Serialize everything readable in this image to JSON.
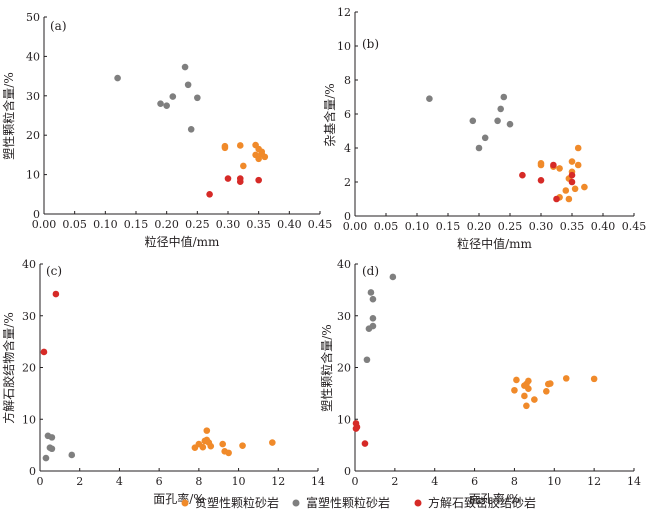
{
  "colors": {
    "poor": "#f08a2a",
    "rich": "#7f7f7f",
    "calcite": "#d62a27",
    "axis": "#231f20"
  },
  "legend": {
    "poor": "贫塑性颗粒砂岩",
    "rich": "富塑性颗粒砂岩",
    "calcite": "方解石致密胶结砂岩"
  },
  "chart_data": [
    {
      "type": "scatter",
      "label": "(a)",
      "xlabel": "粒径中值/mm",
      "ylabel": "塑性颗粒含量/%",
      "xlim": [
        0,
        0.45
      ],
      "ylim": [
        0,
        50
      ],
      "xticks": [
        "0.00",
        "0.05",
        "0.10",
        "0.15",
        "0.20",
        "0.25",
        "0.30",
        "0.35",
        "0.40",
        "0.45"
      ],
      "yticks": [
        "0",
        "10",
        "20",
        "30",
        "40",
        "50"
      ],
      "series": [
        {
          "key": "poor",
          "points": [
            [
              0.295,
              16.8
            ],
            [
              0.295,
              17.2
            ],
            [
              0.32,
              17.4
            ],
            [
              0.345,
              17.5
            ],
            [
              0.35,
              16.5
            ],
            [
              0.355,
              15.2
            ],
            [
              0.345,
              15.0
            ],
            [
              0.36,
              14.5
            ],
            [
              0.35,
              14.0
            ],
            [
              0.325,
              12.2
            ],
            [
              0.355,
              15.8
            ]
          ]
        },
        {
          "key": "rich",
          "points": [
            [
              0.12,
              34.5
            ],
            [
              0.19,
              28.0
            ],
            [
              0.2,
              27.5
            ],
            [
              0.21,
              29.8
            ],
            [
              0.23,
              37.3
            ],
            [
              0.235,
              32.8
            ],
            [
              0.25,
              29.5
            ],
            [
              0.24,
              21.5
            ]
          ]
        },
        {
          "key": "calcite",
          "points": [
            [
              0.27,
              5.0
            ],
            [
              0.3,
              9.0
            ],
            [
              0.32,
              9.0
            ],
            [
              0.32,
              8.2
            ],
            [
              0.35,
              8.6
            ]
          ]
        }
      ]
    },
    {
      "type": "scatter",
      "label": "(b)",
      "xlabel": "粒径中值/mm",
      "ylabel": "杂基含量/%",
      "xlim": [
        0,
        0.45
      ],
      "ylim": [
        0,
        12
      ],
      "xticks": [
        "0.00",
        "0.05",
        "0.10",
        "0.15",
        "0.20",
        "0.25",
        "0.30",
        "0.35",
        "0.40",
        "0.45"
      ],
      "yticks": [
        "0",
        "2",
        "4",
        "6",
        "8",
        "10",
        "12"
      ],
      "series": [
        {
          "key": "poor",
          "points": [
            [
              0.3,
              3.1
            ],
            [
              0.3,
              3.0
            ],
            [
              0.32,
              2.9
            ],
            [
              0.33,
              2.8
            ],
            [
              0.35,
              3.2
            ],
            [
              0.36,
              4.0
            ],
            [
              0.36,
              3.0
            ],
            [
              0.35,
              2.6
            ],
            [
              0.345,
              2.2
            ],
            [
              0.355,
              1.6
            ],
            [
              0.34,
              1.5
            ],
            [
              0.37,
              1.7
            ],
            [
              0.345,
              1.0
            ],
            [
              0.33,
              1.1
            ]
          ]
        },
        {
          "key": "rich",
          "points": [
            [
              0.12,
              6.9
            ],
            [
              0.19,
              5.6
            ],
            [
              0.2,
              4.0
            ],
            [
              0.21,
              4.6
            ],
            [
              0.23,
              5.6
            ],
            [
              0.235,
              6.3
            ],
            [
              0.24,
              7.0
            ],
            [
              0.25,
              5.4
            ]
          ]
        },
        {
          "key": "calcite",
          "points": [
            [
              0.27,
              2.4
            ],
            [
              0.3,
              2.1
            ],
            [
              0.32,
              3.0
            ],
            [
              0.325,
              1.0
            ],
            [
              0.35,
              2.0
            ],
            [
              0.35,
              2.4
            ]
          ]
        }
      ]
    },
    {
      "type": "scatter",
      "label": "(c)",
      "xlabel": "面孔率/%",
      "ylabel": "方解石胶结物含量/%",
      "xlim": [
        0,
        14
      ],
      "ylim": [
        0,
        40
      ],
      "xticks": [
        "0",
        "2",
        "4",
        "6",
        "8",
        "10",
        "12",
        "14"
      ],
      "yticks": [
        "0",
        "10",
        "20",
        "30",
        "40"
      ],
      "series": [
        {
          "key": "poor",
          "points": [
            [
              7.8,
              4.5
            ],
            [
              8.0,
              5.2
            ],
            [
              8.2,
              4.6
            ],
            [
              8.3,
              5.8
            ],
            [
              8.4,
              6.0
            ],
            [
              8.4,
              7.8
            ],
            [
              8.5,
              5.5
            ],
            [
              8.6,
              4.8
            ],
            [
              9.2,
              5.2
            ],
            [
              9.5,
              3.5
            ],
            [
              9.3,
              3.8
            ],
            [
              10.2,
              4.9
            ],
            [
              11.7,
              5.5
            ]
          ]
        },
        {
          "key": "rich",
          "points": [
            [
              0.3,
              2.5
            ],
            [
              0.4,
              6.8
            ],
            [
              0.5,
              4.5
            ],
            [
              0.6,
              4.3
            ],
            [
              0.6,
              6.5
            ],
            [
              1.6,
              3.1
            ]
          ]
        },
        {
          "key": "calcite",
          "points": [
            [
              0.2,
              23.0
            ],
            [
              0.8,
              34.2
            ]
          ]
        }
      ]
    },
    {
      "type": "scatter",
      "label": "(d)",
      "xlabel": "面孔率/%",
      "ylabel": "塑性颗粒含量/%",
      "xlim": [
        0,
        14
      ],
      "ylim": [
        0,
        40
      ],
      "xticks": [
        "0",
        "2",
        "4",
        "6",
        "8",
        "10",
        "12",
        "14"
      ],
      "yticks": [
        "0",
        "10",
        "20",
        "30",
        "40"
      ],
      "series": [
        {
          "key": "poor",
          "points": [
            [
              8.0,
              15.6
            ],
            [
              8.1,
              17.6
            ],
            [
              8.5,
              14.5
            ],
            [
              8.5,
              16.5
            ],
            [
              8.6,
              16.8
            ],
            [
              8.7,
              15.9
            ],
            [
              8.7,
              17.4
            ],
            [
              8.6,
              12.6
            ],
            [
              9.0,
              13.8
            ],
            [
              9.6,
              15.4
            ],
            [
              9.7,
              16.8
            ],
            [
              9.8,
              16.9
            ],
            [
              10.6,
              17.9
            ],
            [
              12.0,
              17.8
            ]
          ]
        },
        {
          "key": "rich",
          "points": [
            [
              0.6,
              21.5
            ],
            [
              0.7,
              27.5
            ],
            [
              0.8,
              34.5
            ],
            [
              0.9,
              33.2
            ],
            [
              0.9,
              28.0
            ],
            [
              0.9,
              29.5
            ],
            [
              1.9,
              37.5
            ]
          ]
        },
        {
          "key": "calcite",
          "points": [
            [
              0.05,
              9.2
            ],
            [
              0.05,
              8.2
            ],
            [
              0.1,
              8.5
            ],
            [
              0.5,
              5.3
            ]
          ]
        }
      ]
    }
  ]
}
